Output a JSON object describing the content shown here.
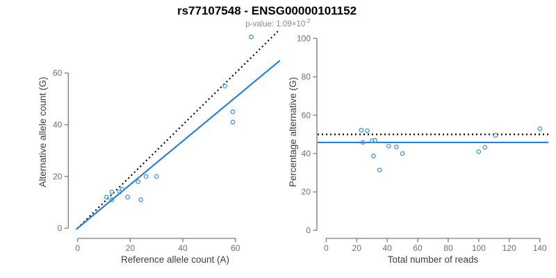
{
  "header": {
    "title": "rs77107548 - ENSG00000101152",
    "subtitle_base": "p-value: 1.09×10",
    "subtitle_exponent": "-2"
  },
  "colors": {
    "point_blue": "#3d95e0",
    "line_blue": "#2383e2",
    "reference_black": "#000000",
    "axis_line_gray": "#7a7a7a",
    "tick_text_gray": "#6e6e6e",
    "axis_title_gray": "#3f3f3f",
    "subtitle_gray": "#8a8a8a"
  },
  "chart_data": [
    {
      "type": "scatter",
      "name": "allele-count-scatter",
      "xlabel": "Reference allele count (A)",
      "ylabel": "Alternative allele count (G)",
      "xticks": [
        0,
        20,
        40,
        60
      ],
      "yticks": [
        0,
        20,
        40,
        60
      ],
      "xlim": [
        -2.96,
        76.96
      ],
      "ylim": [
        -2.96,
        76.96
      ],
      "grid": false,
      "points": [
        [
          11,
          12
        ],
        [
          13,
          11
        ],
        [
          13,
          14
        ],
        [
          16,
          14
        ],
        [
          17,
          15
        ],
        [
          19,
          12
        ],
        [
          23,
          18
        ],
        [
          24,
          11
        ],
        [
          26,
          20
        ],
        [
          30,
          20
        ],
        [
          56,
          55
        ],
        [
          59,
          41
        ],
        [
          59,
          45
        ],
        [
          66,
          74
        ]
      ],
      "lines": [
        {
          "name": "identity-line",
          "style": "dotted",
          "slope": 1,
          "intercept": 0,
          "color": "#000000",
          "xstart": 0
        },
        {
          "name": "fit-line",
          "style": "solid",
          "slope": 0.843,
          "intercept": 0,
          "color": "#2383e2",
          "xstart": -0.6
        }
      ]
    },
    {
      "type": "scatter",
      "name": "percentage-vs-reads-scatter",
      "xlabel": "Total number of reads",
      "ylabel": "Percentage alternative (G)",
      "xticks": [
        0,
        20,
        40,
        60,
        80,
        100,
        120,
        140
      ],
      "yticks": [
        0,
        20,
        40,
        60,
        80,
        100
      ],
      "xlim": [
        -5.6,
        145.6
      ],
      "ylim": [
        -4.16,
        104.16
      ],
      "grid": false,
      "points": [
        [
          23,
          52.2
        ],
        [
          24,
          45.8
        ],
        [
          27,
          51.9
        ],
        [
          30,
          46.7
        ],
        [
          31,
          38.7
        ],
        [
          32,
          46.9
        ],
        [
          35,
          31.4
        ],
        [
          41,
          43.9
        ],
        [
          46,
          43.5
        ],
        [
          50,
          40.0
        ],
        [
          100,
          41.0
        ],
        [
          104,
          43.3
        ],
        [
          111,
          49.5
        ],
        [
          140,
          52.9
        ]
      ],
      "lines": [
        {
          "name": "fifty-percent-line",
          "style": "dotted",
          "slope": 0,
          "intercept": 50,
          "color": "#000000"
        },
        {
          "name": "fit-line",
          "style": "solid",
          "slope": 0,
          "intercept": 45.8,
          "color": "#2383e2"
        }
      ]
    }
  ]
}
